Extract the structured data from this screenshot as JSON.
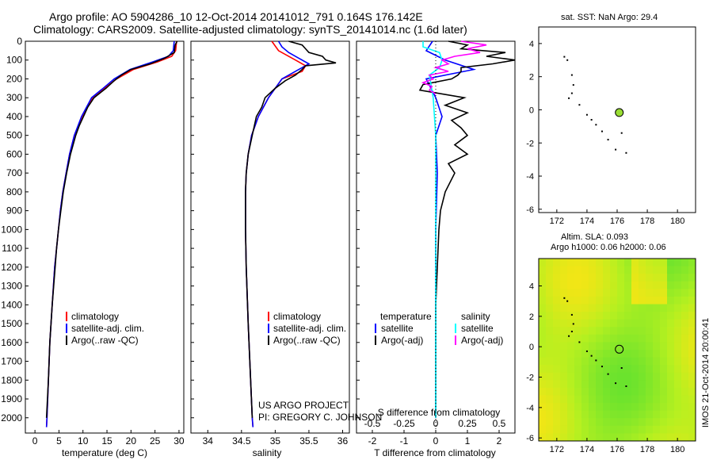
{
  "header": {
    "title_line1": "Argo profile: AO 5904286_10 12-Oct-2014 20141012_791 0.164S 176.142E",
    "title_line2": "Climatology: CARS2009. Satellite-adjusted climatology: synTS_20141014.nc (1.6d later)"
  },
  "credits": {
    "project": "US ARGO PROJECT",
    "pi": "PI: GREGORY C. JOHNSON",
    "imos": "IMOS 21-Oct-2014 20:00:41"
  },
  "colors": {
    "climatology": "#ff0000",
    "satellite": "#0000ff",
    "argo": "#000000",
    "salinity_sat": "#00ffff",
    "salinity_argo": "#ff00ff",
    "green_dot": "#99dd33"
  },
  "depth_axis": {
    "ticks": [
      0,
      100,
      200,
      300,
      400,
      500,
      600,
      700,
      800,
      900,
      1000,
      1100,
      1200,
      1300,
      1400,
      1500,
      1600,
      1700,
      1800,
      1900,
      2000
    ],
    "range": [
      0,
      2060
    ]
  },
  "legends": {
    "profile": [
      "climatology",
      "satellite-adj. clim.",
      "Argo(..raw -QC)"
    ],
    "diff_temp_header": "temperature",
    "diff_sal_header": "salinity",
    "diff_temp_items": [
      "satellite",
      "Argo(-adj)"
    ],
    "diff_sal_items": [
      "satellite",
      "Argo(-adj)"
    ]
  },
  "map_labels": {
    "sst": "sat. SST: NaN Argo: 29.4",
    "sla": "Altim. SLA: 0.093",
    "heights": "Argo h1000: 0.06 h2000: 0.06"
  },
  "chart_data": [
    {
      "type": "line",
      "name": "temperature",
      "xlabel": "temperature (deg C)",
      "xlim": [
        -2,
        31
      ],
      "ylim": [
        0,
        2060
      ],
      "xticks": [
        "0",
        "5",
        "10",
        "15",
        "20",
        "25",
        "30"
      ],
      "series": [
        {
          "name": "climatology",
          "depth": [
            0,
            50,
            80,
            110,
            150,
            200,
            250,
            300,
            400,
            500,
            600,
            700,
            800,
            900,
            1000,
            1200,
            1400,
            1600,
            1800,
            2000,
            2050
          ],
          "values": [
            29.5,
            29.3,
            28.5,
            25.5,
            20.5,
            17.0,
            14.5,
            12.0,
            9.8,
            8.2,
            7.2,
            6.5,
            5.8,
            5.3,
            4.9,
            4.1,
            3.6,
            3.1,
            2.8,
            2.5,
            2.4
          ]
        },
        {
          "name": "satellite-adj. clim.",
          "depth": [
            0,
            50,
            80,
            110,
            150,
            200,
            250,
            300,
            400,
            500,
            600,
            700,
            800,
            900,
            1000,
            1200,
            1400,
            1600,
            1800,
            2000,
            2050
          ],
          "values": [
            29.0,
            28.8,
            27.8,
            24.5,
            19.8,
            16.5,
            14.2,
            11.8,
            9.7,
            8.2,
            7.2,
            6.5,
            5.8,
            5.3,
            4.9,
            4.1,
            3.6,
            3.1,
            2.8,
            2.5,
            2.4
          ]
        },
        {
          "name": "Argo(..raw -QC)",
          "depth": [
            0,
            20,
            60,
            90,
            120,
            150,
            180,
            210,
            250,
            300,
            350,
            400,
            450,
            500,
            600,
            700,
            800,
            900,
            1000,
            1100,
            1200,
            1400,
            1600,
            1800,
            2000
          ],
          "values": [
            29.6,
            29.2,
            29.0,
            27.0,
            24.0,
            20.0,
            18.0,
            16.5,
            14.8,
            12.3,
            11.0,
            10.1,
            9.2,
            8.5,
            7.4,
            6.6,
            5.9,
            5.4,
            4.9,
            4.5,
            4.2,
            3.6,
            3.1,
            2.8,
            2.4
          ]
        }
      ]
    },
    {
      "type": "line",
      "name": "salinity",
      "xlabel": "salinity",
      "xlim": [
        33.75,
        36.1
      ],
      "ylim": [
        0,
        2060
      ],
      "xticks": [
        "34",
        "34.5",
        "35",
        "35.5",
        "36"
      ],
      "series": [
        {
          "name": "climatology",
          "depth": [
            0,
            50,
            100,
            130,
            160,
            200,
            250,
            300,
            400,
            500,
            600,
            700,
            800,
            1000,
            1200,
            1500,
            2000,
            2050
          ],
          "values": [
            34.95,
            35.05,
            35.3,
            35.45,
            35.4,
            35.1,
            35.0,
            34.9,
            34.75,
            34.65,
            34.6,
            34.57,
            34.56,
            34.56,
            34.57,
            34.6,
            34.66,
            34.67
          ]
        },
        {
          "name": "satellite-adj. clim.",
          "depth": [
            0,
            30,
            60,
            90,
            120,
            150,
            200,
            250,
            300,
            400,
            500,
            600,
            700,
            800,
            1000,
            1200,
            1500,
            2000,
            2050
          ],
          "values": [
            35.05,
            35.1,
            35.2,
            35.35,
            35.5,
            35.35,
            35.1,
            35.0,
            34.9,
            34.75,
            34.65,
            34.6,
            34.57,
            34.56,
            34.56,
            34.57,
            34.6,
            34.66,
            34.67
          ]
        },
        {
          "name": "Argo(..raw -QC)",
          "depth": [
            0,
            20,
            40,
            60,
            80,
            100,
            115,
            130,
            150,
            180,
            210,
            250,
            300,
            350,
            400,
            500,
            600,
            700,
            800,
            1000,
            1200,
            1500,
            2000
          ],
          "values": [
            35.2,
            35.4,
            35.45,
            35.5,
            35.7,
            35.75,
            35.9,
            35.45,
            35.4,
            35.3,
            35.15,
            35.0,
            34.85,
            34.8,
            34.72,
            34.66,
            34.6,
            34.57,
            34.56,
            34.56,
            34.57,
            34.6,
            34.66
          ]
        }
      ]
    },
    {
      "type": "line",
      "name": "difference from climatology",
      "xlabel": "T difference from climatology",
      "x2label": "S difference from climatology",
      "xlim": [
        -2.5,
        2.5
      ],
      "ylim": [
        0,
        2060
      ],
      "xticks": [
        "-2",
        "-1",
        "0",
        "1",
        "2"
      ],
      "x2ticks": [
        "-0.5",
        "-0.25",
        "0",
        "0.25",
        "0.5"
      ],
      "series": [
        {
          "name": "temperature satellite",
          "depth": [
            0,
            50,
            100,
            150,
            200,
            300,
            400,
            500,
            700,
            1000,
            1500,
            2000
          ],
          "values": [
            -0.1,
            -0.3,
            0.3,
            1.2,
            -0.3,
            0.0,
            0.2,
            0.0,
            0.05,
            0.0,
            0.0,
            0.0
          ]
        },
        {
          "name": "temperature Argo(-adj)",
          "depth": [
            0,
            20,
            40,
            60,
            80,
            100,
            120,
            140,
            160,
            180,
            200,
            230,
            260,
            300,
            340,
            380,
            420,
            460,
            500,
            550,
            600,
            650,
            700,
            800,
            900,
            1000,
            1200,
            1400,
            1600,
            1800,
            2000
          ],
          "values": [
            0.4,
            1.0,
            0.8,
            2.2,
            1.6,
            2.5,
            1.8,
            0.8,
            0.8,
            0.7,
            0.5,
            -0.4,
            -0.5,
            0.9,
            0.3,
            1.0,
            0.5,
            0.8,
            1.0,
            0.6,
            1.0,
            0.4,
            0.6,
            0.3,
            0.15,
            0.1,
            0.05,
            0.0,
            0.0,
            0.0,
            0.0
          ]
        },
        {
          "name": "salinity satellite",
          "depth": [
            0,
            30,
            60,
            100,
            140,
            180,
            220,
            260,
            300,
            400,
            500,
            700,
            1000,
            1500,
            2000
          ],
          "values": [
            -0.1,
            -0.1,
            0.03,
            0.05,
            0.03,
            -0.05,
            -0.04,
            -0.03,
            -0.02,
            -0.01,
            0.0,
            0.0,
            0.0,
            0.0,
            0.0
          ]
        },
        {
          "name": "salinity Argo(-adj)",
          "depth": [
            0,
            20,
            40,
            60,
            80,
            100,
            120,
            140,
            160,
            180,
            200,
            220,
            240,
            260,
            280
          ],
          "values": [
            0.2,
            0.4,
            0.25,
            0.35,
            0.15,
            0.05,
            0.1,
            0.0,
            0.1,
            -0.05,
            -0.02,
            -0.1,
            -0.03,
            -0.05,
            0.0
          ]
        }
      ]
    },
    {
      "type": "scatter",
      "name": "sst map",
      "xlim": [
        170.8,
        181.2
      ],
      "ylim": [
        -6.2,
        5.0
      ],
      "xticks": [
        "172",
        "174",
        "176",
        "178",
        "180"
      ],
      "yticks": [
        "4",
        "2",
        "0",
        "-2",
        "-4",
        "-6"
      ],
      "points_lon": [
        172.5,
        172.7,
        173.0,
        173.1,
        173.0,
        172.8,
        173.5,
        174.0,
        174.3,
        174.6,
        175.0,
        175.4,
        175.9,
        176.3,
        176.6
      ],
      "points_lat": [
        3.2,
        3.0,
        2.1,
        1.5,
        1.0,
        0.7,
        0.3,
        -0.3,
        -0.6,
        -0.9,
        -1.3,
        -1.8,
        -2.4,
        -1.4,
        -2.6
      ],
      "argo_lon": 176.142,
      "argo_lat": -0.164
    },
    {
      "type": "heatmap",
      "name": "sla map",
      "xlim": [
        170.8,
        181.2
      ],
      "ylim": [
        -6.2,
        5.8
      ],
      "xticks": [
        "172",
        "174",
        "176",
        "178",
        "180"
      ],
      "yticks": [
        "4",
        "2",
        "0",
        "-2",
        "-4",
        "-6"
      ],
      "argo_lon": 176.142,
      "argo_lat": -0.164
    }
  ]
}
